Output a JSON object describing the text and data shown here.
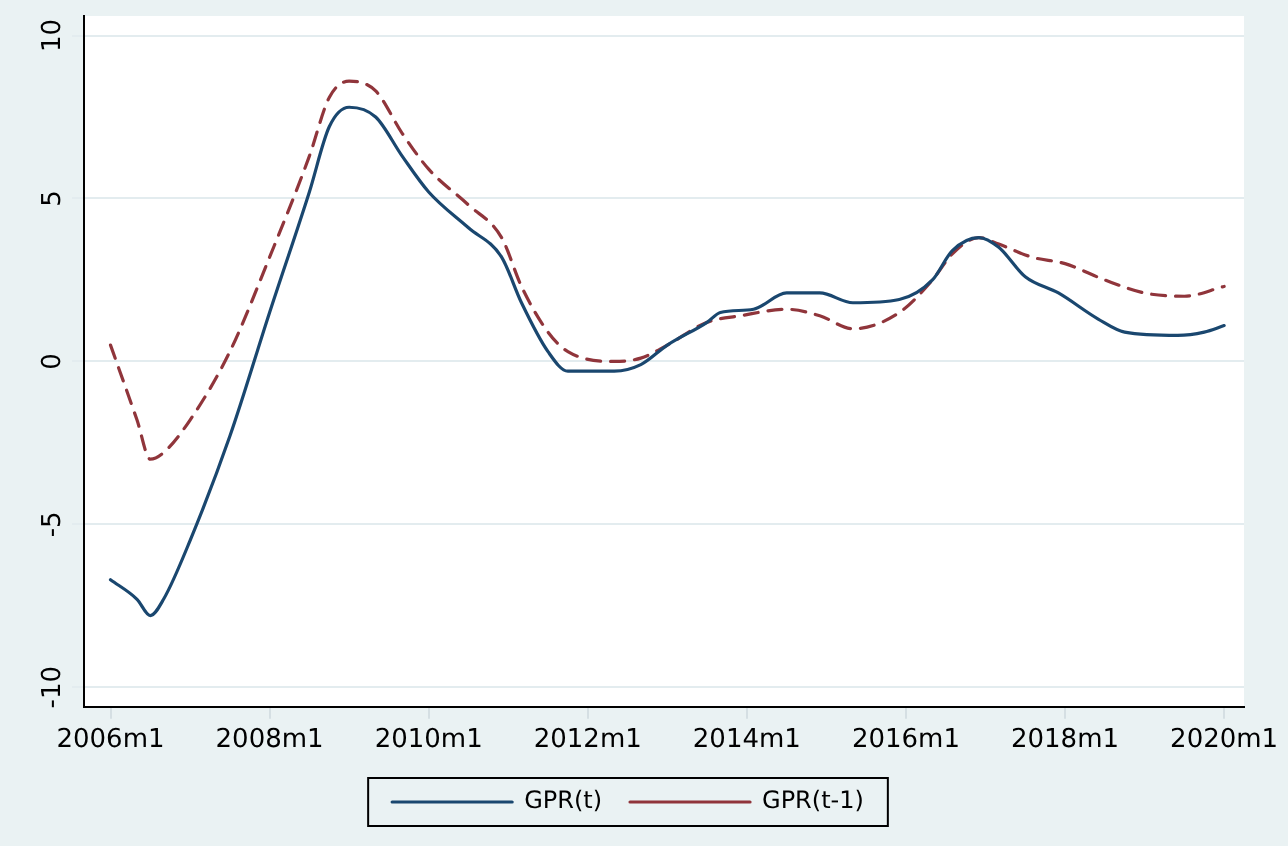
{
  "chart_data": {
    "type": "line",
    "xlim": [
      "2005-09",
      "2020-04"
    ],
    "ylim": [
      -10.6,
      10.6
    ],
    "xticks": [
      {
        "value": "2006-01",
        "label": "2006m1"
      },
      {
        "value": "2008-01",
        "label": "2008m1"
      },
      {
        "value": "2010-01",
        "label": "2010m1"
      },
      {
        "value": "2012-01",
        "label": "2012m1"
      },
      {
        "value": "2014-01",
        "label": "2014m1"
      },
      {
        "value": "2016-01",
        "label": "2016m1"
      },
      {
        "value": "2018-01",
        "label": "2018m1"
      },
      {
        "value": "2020-01",
        "label": "2020m1"
      }
    ],
    "yticks": [
      -10,
      -5,
      0,
      5,
      10
    ],
    "grid": "y",
    "legend": "bottom",
    "marker": "none",
    "series": [
      {
        "name": "GPR(t)",
        "color": "#1a476f",
        "line_style": "solid",
        "x": [
          "2006-01",
          "2006-05",
          "2006-07",
          "2006-09",
          "2007-01",
          "2007-07",
          "2008-01",
          "2008-07",
          "2008-10",
          "2009-01",
          "2009-05",
          "2009-09",
          "2010-01",
          "2010-07",
          "2010-12",
          "2011-03",
          "2011-07",
          "2011-10",
          "2012-05",
          "2012-09",
          "2013-01",
          "2013-07",
          "2013-09",
          "2014-02",
          "2014-07",
          "2014-12",
          "2015-05",
          "2015-12",
          "2016-05",
          "2016-08",
          "2016-12",
          "2017-03",
          "2017-07",
          "2017-12",
          "2018-06",
          "2018-10",
          "2019-06",
          "2019-10",
          "2020-01"
        ],
        "values": [
          -6.7,
          -7.3,
          -7.8,
          -7.3,
          -5.5,
          -2.3,
          1.5,
          5.2,
          7.2,
          7.8,
          7.5,
          6.3,
          5.2,
          4.1,
          3.2,
          1.8,
          0.3,
          -0.3,
          -0.3,
          -0.1,
          0.5,
          1.2,
          1.5,
          1.6,
          2.1,
          2.1,
          1.8,
          1.9,
          2.5,
          3.4,
          3.8,
          3.5,
          2.6,
          2.1,
          1.3,
          0.9,
          0.8,
          0.9,
          1.1
        ]
      },
      {
        "name": "GPR(t-1)",
        "color": "#90353b",
        "line_style": "dashed",
        "x": [
          "2006-01",
          "2006-05",
          "2006-07",
          "2006-09",
          "2007-01",
          "2007-07",
          "2008-01",
          "2008-07",
          "2008-10",
          "2009-01",
          "2009-05",
          "2009-09",
          "2010-01",
          "2010-07",
          "2010-12",
          "2011-03",
          "2011-07",
          "2011-10",
          "2012-05",
          "2012-09",
          "2013-01",
          "2013-07",
          "2013-12",
          "2014-07",
          "2014-12",
          "2015-05",
          "2015-12",
          "2016-05",
          "2016-08",
          "2016-12",
          "2017-03",
          "2017-08",
          "2018-01",
          "2018-07",
          "2019-01",
          "2019-07",
          "2020-01"
        ],
        "values": [
          0.5,
          -1.8,
          -3.0,
          -2.8,
          -1.8,
          0.3,
          3.2,
          6.3,
          8.1,
          8.6,
          8.3,
          7.0,
          5.9,
          4.8,
          3.8,
          2.3,
          0.9,
          0.3,
          0.0,
          0.1,
          0.5,
          1.2,
          1.4,
          1.6,
          1.4,
          1.0,
          1.5,
          2.5,
          3.3,
          3.8,
          3.6,
          3.2,
          3.0,
          2.5,
          2.1,
          2.0,
          2.3
        ]
      }
    ]
  }
}
